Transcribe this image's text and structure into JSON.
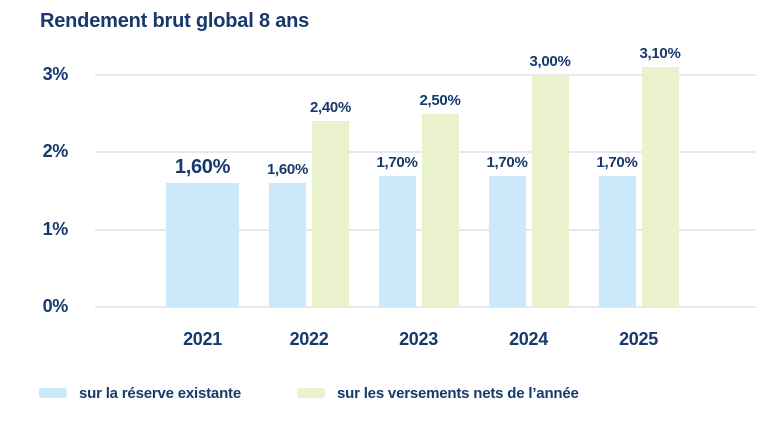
{
  "title": "Rendement brut global 8 ans",
  "colors": {
    "navy": "#17396b",
    "blue_bar": "#cbe9fb",
    "green_bar": "#e9f2cd",
    "gridline": "#e6eaf0"
  },
  "chart_data": {
    "type": "bar",
    "title": "Rendement brut global 8 ans",
    "categories": [
      "2021",
      "2022",
      "2023",
      "2024",
      "2025"
    ],
    "series": [
      {
        "name": "sur la réserve existante",
        "color": "#cbe9fb",
        "values": [
          1.6,
          1.6,
          1.7,
          1.7,
          1.7
        ],
        "labels": [
          "1,60%",
          "1,60%",
          "1,70%",
          "1,70%",
          "1,70%"
        ]
      },
      {
        "name": "sur les versements nets de l’année",
        "color": "#e9f2cd",
        "values": [
          null,
          2.4,
          2.5,
          3.0,
          3.1
        ],
        "labels": [
          null,
          "2,40%",
          "2,50%",
          "3,00%",
          "3,10%"
        ]
      }
    ],
    "y_ticks": [
      {
        "value": 0,
        "label": "0%"
      },
      {
        "value": 1,
        "label": "1%"
      },
      {
        "value": 2,
        "label": "2%"
      },
      {
        "value": 3,
        "label": "3%"
      }
    ],
    "ylim": [
      0,
      3.3
    ],
    "grid": true,
    "legend_position": "bottom"
  },
  "legend": {
    "items": [
      {
        "label": "sur la réserve existante",
        "color": "#cbe9fb"
      },
      {
        "label": "sur les versements nets de l’année",
        "color": "#e9f2cd"
      }
    ]
  }
}
